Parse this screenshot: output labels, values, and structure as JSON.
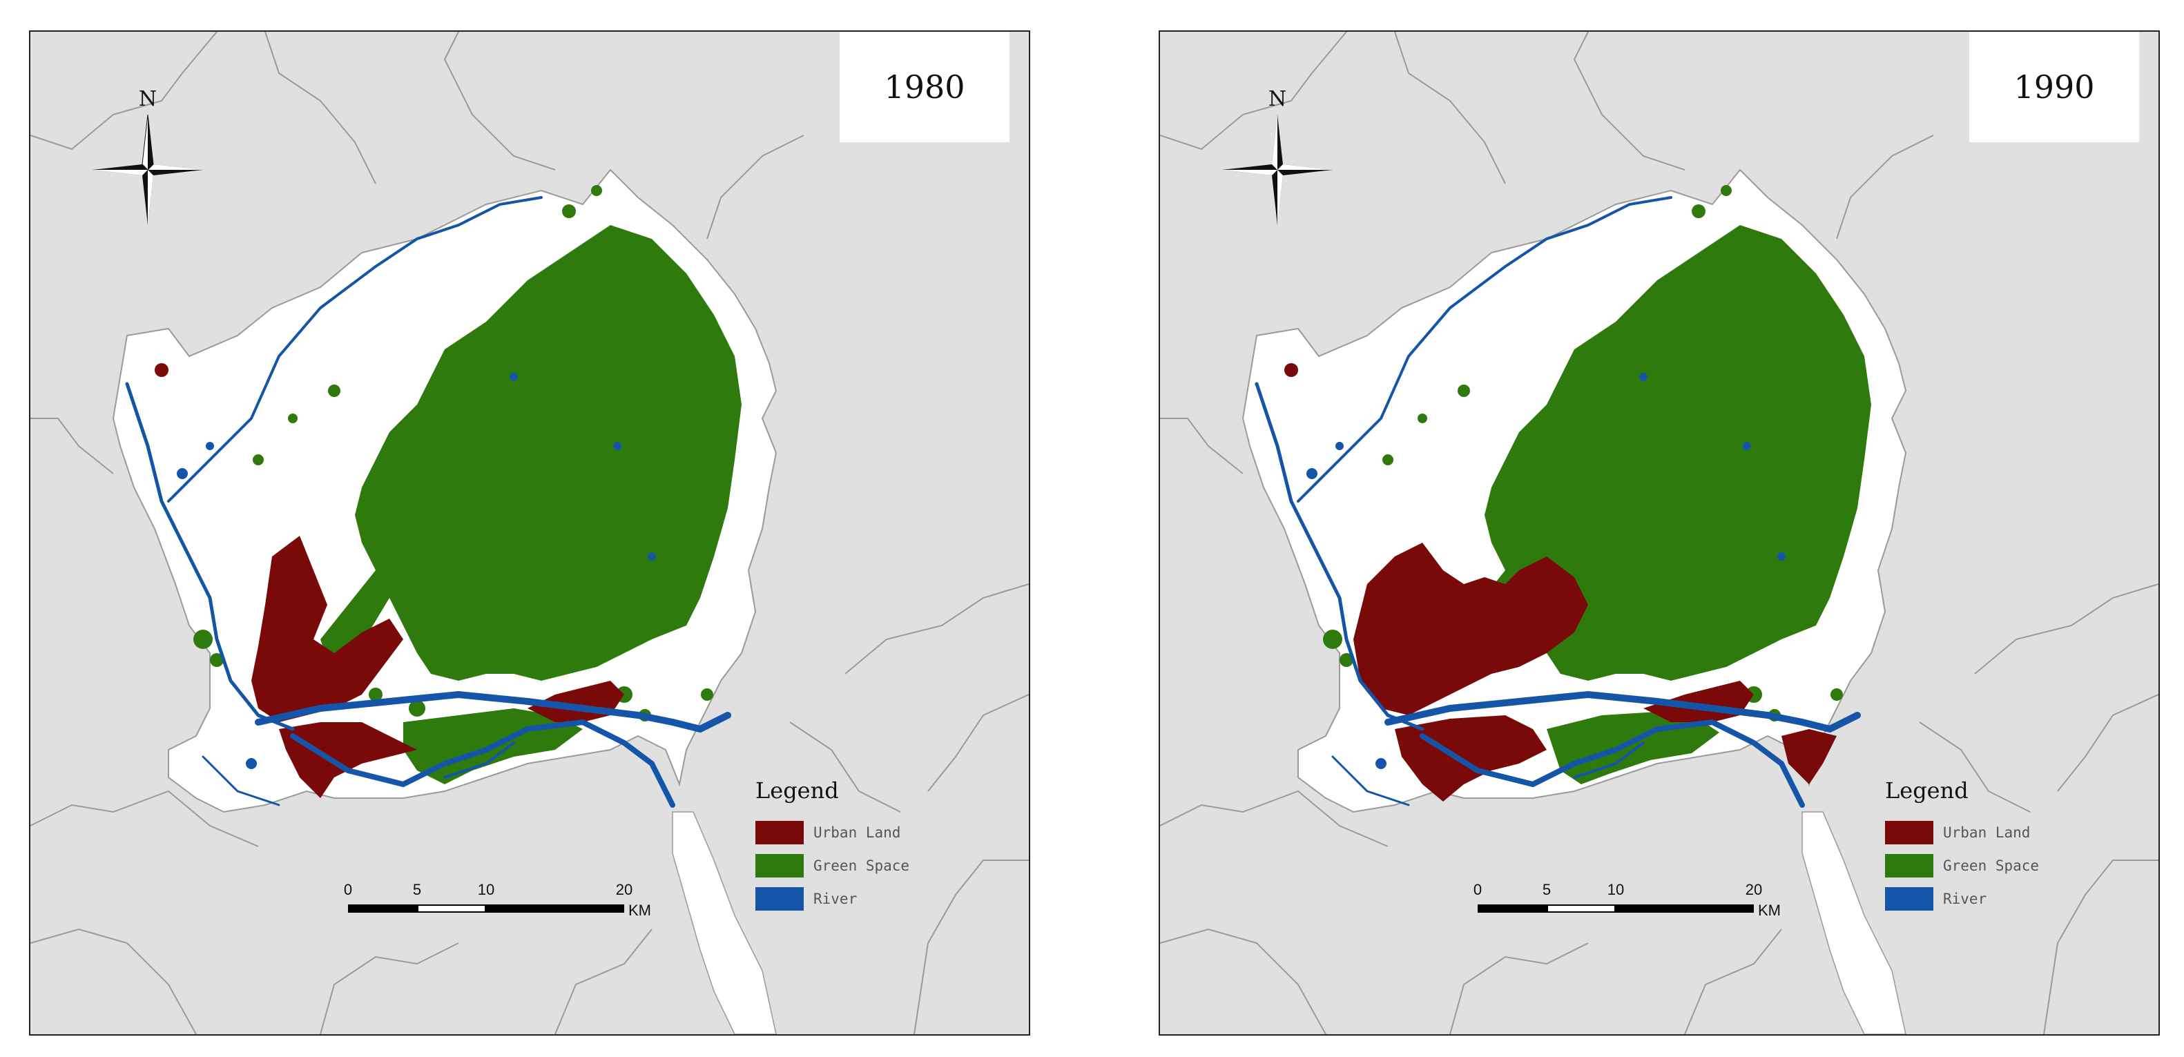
{
  "colors": {
    "background": "#e0e0e0",
    "boundary": "#9a9a9a",
    "study_area": "#ffffff",
    "urban": "#7a0a0a",
    "green": "#2e7a0c",
    "river": "#1555a8"
  },
  "panels": [
    {
      "year": "1980"
    },
    {
      "year": "1990"
    }
  ],
  "compass": {
    "label": "N"
  },
  "legend": {
    "title": "Legend",
    "items": [
      {
        "label": "Urban Land",
        "color": "#7a0a0a"
      },
      {
        "label": "Green Space",
        "color": "#2e7a0c"
      },
      {
        "label": "River",
        "color": "#1555a8"
      }
    ]
  },
  "scale": {
    "ticks": [
      "0",
      "5",
      "10",
      "20"
    ],
    "unit": "KM"
  }
}
